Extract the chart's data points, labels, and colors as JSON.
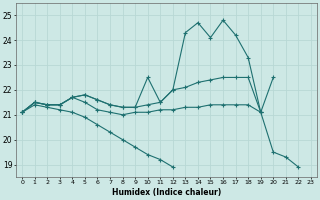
{
  "xlabel": "Humidex (Indice chaleur)",
  "xlim": [
    -0.5,
    23.5
  ],
  "ylim": [
    18.5,
    25.5
  ],
  "yticks": [
    19,
    20,
    21,
    22,
    23,
    24,
    25
  ],
  "xticks": [
    0,
    1,
    2,
    3,
    4,
    5,
    6,
    7,
    8,
    9,
    10,
    11,
    12,
    13,
    14,
    15,
    16,
    17,
    18,
    19,
    20,
    21,
    22,
    23
  ],
  "background_color": "#cde8e5",
  "grid_color": "#b8d8d5",
  "line_color": "#1e7070",
  "lines": [
    {
      "x": [
        0,
        1,
        2,
        3,
        4,
        5,
        6,
        7,
        8,
        9,
        10,
        11,
        12,
        13,
        14,
        15,
        16,
        17,
        18,
        19,
        20,
        21,
        22
      ],
      "y": [
        21.1,
        21.5,
        21.4,
        21.4,
        21.7,
        21.8,
        21.6,
        21.4,
        21.3,
        21.3,
        22.5,
        21.5,
        22.0,
        24.3,
        24.7,
        24.1,
        24.8,
        24.2,
        23.3,
        21.1,
        19.5,
        19.3,
        18.9
      ]
    },
    {
      "x": [
        0,
        1,
        2,
        3,
        4,
        5,
        6,
        7,
        8,
        9,
        10,
        11,
        12,
        13,
        14,
        15,
        16,
        17,
        18,
        19,
        20
      ],
      "y": [
        21.1,
        21.5,
        21.4,
        21.4,
        21.7,
        21.8,
        21.6,
        21.4,
        21.3,
        21.3,
        21.4,
        21.5,
        22.0,
        22.1,
        22.3,
        22.4,
        22.5,
        22.5,
        22.5,
        21.1,
        22.5
      ]
    },
    {
      "x": [
        0,
        1,
        2,
        3,
        4,
        5,
        6,
        7,
        8,
        9,
        10,
        11,
        12,
        13,
        14,
        15,
        16,
        17,
        18,
        19
      ],
      "y": [
        21.1,
        21.5,
        21.4,
        21.4,
        21.7,
        21.5,
        21.2,
        21.1,
        21.0,
        21.1,
        21.1,
        21.2,
        21.2,
        21.3,
        21.3,
        21.4,
        21.4,
        21.4,
        21.4,
        21.1
      ]
    },
    {
      "x": [
        0,
        1,
        2,
        3,
        4,
        5,
        6,
        7,
        8,
        9,
        10,
        11,
        12
      ],
      "y": [
        21.1,
        21.4,
        21.3,
        21.2,
        21.1,
        20.9,
        20.6,
        20.3,
        20.0,
        19.7,
        19.4,
        19.2,
        18.9
      ]
    }
  ]
}
